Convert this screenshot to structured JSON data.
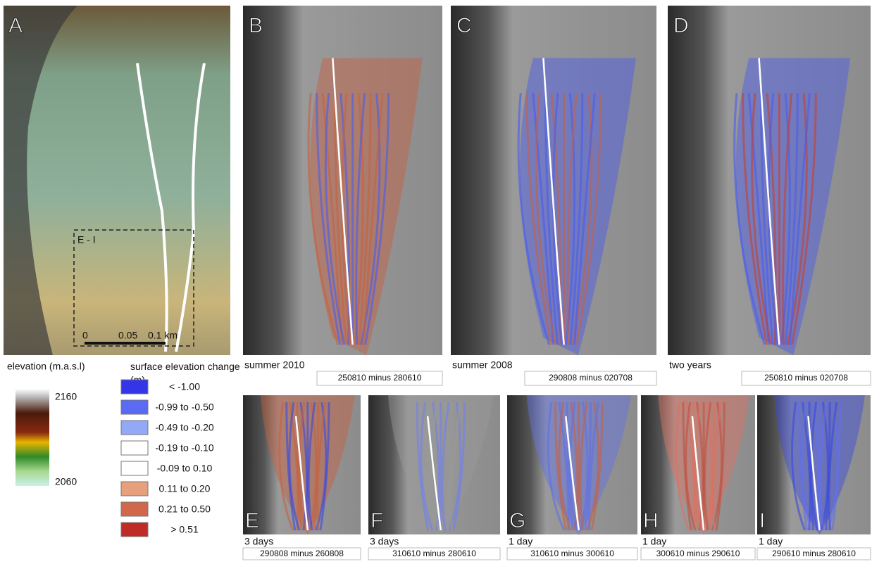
{
  "panel_a": {
    "letter": "A",
    "inset_label": "E - I",
    "scale_labels": [
      "0",
      "0.05",
      "0.1 km"
    ]
  },
  "top_panels": [
    {
      "letter": "B",
      "caption": "summer 2010",
      "dates": "250810 minus 280610"
    },
    {
      "letter": "C",
      "caption": "summer 2008",
      "dates": "290808 minus 020708"
    },
    {
      "letter": "D",
      "caption": "two years",
      "dates": "250810 minus 020708"
    }
  ],
  "bottom_panels": [
    {
      "letter": "E",
      "caption": "3 days",
      "dates": "290808 minus 260808"
    },
    {
      "letter": "F",
      "caption": "3 days",
      "dates": "310610 minus 280610"
    },
    {
      "letter": "G",
      "caption": "1 day",
      "dates": "310610 minus 300610"
    },
    {
      "letter": "H",
      "caption": "1 day",
      "dates": "300610 minus 290610"
    },
    {
      "letter": "I",
      "caption": "1 day",
      "dates": "290610 minus 280610"
    }
  ],
  "elevation_legend": {
    "title": "elevation (m.a.s.l)",
    "max": 2160,
    "min": 2060
  },
  "change_legend": {
    "title": "surface elevation change (m)",
    "items": [
      {
        "label": "< -1.00",
        "color": "#3434e8"
      },
      {
        "label": "-0.99 to -0.50",
        "color": "#5a6af4"
      },
      {
        "label": "-0.49 to -0.20",
        "color": "#93a8f6"
      },
      {
        "label": "-0.19 to -0.10",
        "color": "#ffffff"
      },
      {
        "label": "-0.09 to 0.10",
        "color": "#ffffff"
      },
      {
        "label": "0.11 to 0.20",
        "color": "#e6a17c"
      },
      {
        "label": "0.21 to 0.50",
        "color": "#d0684c"
      },
      {
        "label": "> 0.51",
        "color": "#bf2c28"
      }
    ]
  }
}
